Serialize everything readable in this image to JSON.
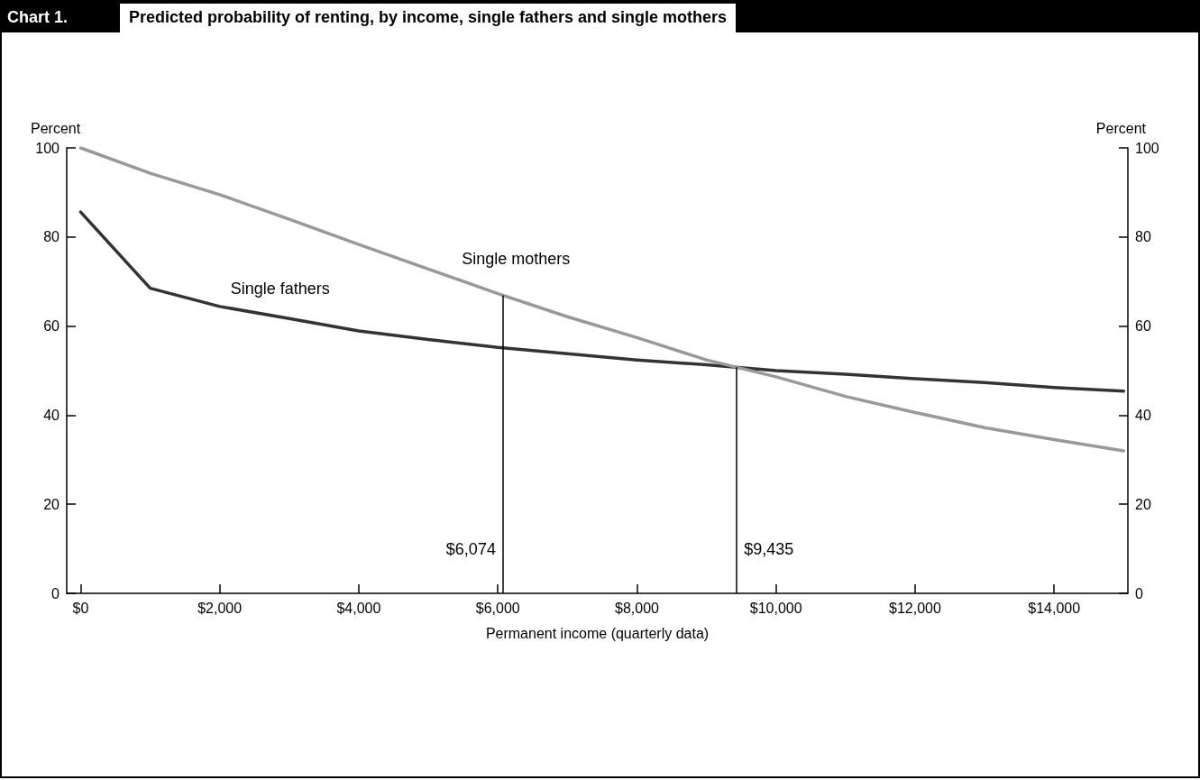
{
  "chart_data": {
    "type": "line",
    "title": "Chart 1.",
    "subtitle": "Predicted probability of renting, by income, single fathers and single mothers",
    "xlabel": "Permanent income (quarterly data)",
    "ylabel": "Percent",
    "y2label": "Percent",
    "xlim": [
      -200,
      15060
    ],
    "xticks": [
      {
        "value": 0,
        "label": "$0"
      },
      {
        "value": 2000,
        "label": "$2,000"
      },
      {
        "value": 4000,
        "label": "$4,000"
      },
      {
        "value": 6000,
        "label": "$6,000"
      },
      {
        "value": 8000,
        "label": "$8,000"
      },
      {
        "value": 10000,
        "label": "$10,000"
      },
      {
        "value": 12000,
        "label": "$12,000"
      },
      {
        "value": 14000,
        "label": "$14,000"
      }
    ],
    "ylim": [
      0,
      100
    ],
    "yticks": [
      0,
      20,
      40,
      60,
      80,
      100
    ],
    "y2lim": [
      0,
      100
    ],
    "y2ticks": [
      0,
      20,
      40,
      60,
      80,
      100
    ],
    "x": [
      0,
      1000,
      2000,
      3000,
      4000,
      5000,
      6000,
      7000,
      8000,
      9000,
      10000,
      11000,
      12000,
      13000,
      14000,
      15000
    ],
    "series": [
      {
        "name": "Single fathers",
        "color": "#333333",
        "values": [
          85.6,
          68.5,
          64.4,
          61.7,
          58.9,
          57.0,
          55.2,
          53.8,
          52.4,
          51.3,
          50.0,
          49.2,
          48.2,
          47.3,
          46.2,
          45.4
        ]
      },
      {
        "name": "Single mothers",
        "color": "#999999",
        "values": [
          100,
          94.3,
          89.5,
          84.0,
          78.3,
          72.8,
          67.3,
          62.1,
          57.4,
          52.4,
          48.6,
          44.2,
          40.6,
          37.2,
          34.5,
          32.0
        ]
      }
    ],
    "ref_lines": [
      {
        "axis": "x",
        "value": 6074,
        "label": "$6,074"
      },
      {
        "axis": "x",
        "value": 9435,
        "label": "$9,435"
      }
    ],
    "grid": false,
    "legend": false,
    "marker": "none",
    "line_style": "solid"
  }
}
